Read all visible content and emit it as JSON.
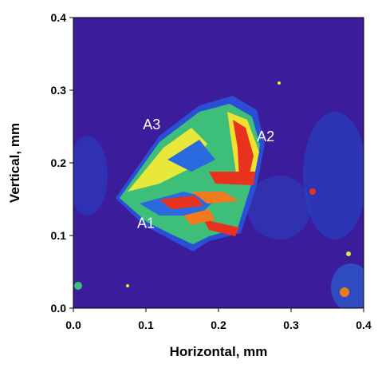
{
  "chart_data": {
    "type": "heatmap",
    "xlabel": "Horizontal, mm",
    "ylabel": "Vertical, mm",
    "xlim": [
      0,
      0.4
    ],
    "ylim": [
      0,
      0.4
    ],
    "xticks": [
      {
        "value": 0,
        "label": "0.0"
      },
      0.1,
      0.2,
      0.3,
      0.4
    ],
    "yticks": [
      {
        "value": 0,
        "label": "0.0"
      },
      0.1,
      0.2,
      0.3,
      0.4
    ],
    "annotations": [
      {
        "text": "A1",
        "x": 0.1,
        "y": 0.117
      },
      {
        "text": "A2",
        "x": 0.265,
        "y": 0.236
      },
      {
        "text": "A3",
        "x": 0.108,
        "y": 0.253
      }
    ]
  }
}
